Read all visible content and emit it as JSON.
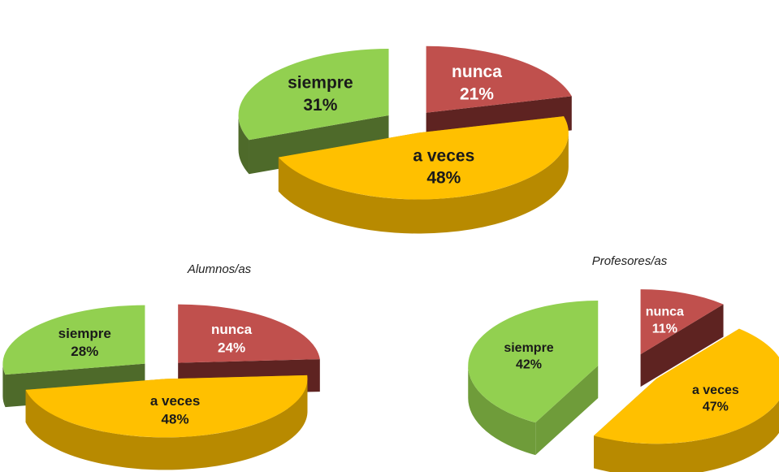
{
  "chart_data": [
    {
      "type": "pie3d",
      "categories": [
        "nunca",
        "a veces",
        "siempre"
      ],
      "values": [
        21,
        48,
        31
      ],
      "value_labels": [
        "21%",
        "48%",
        "31%"
      ],
      "colors": [
        "#c0504d",
        "#ffc000",
        "#92d050"
      ],
      "side_colors": [
        "#5e2321",
        "#b88a00",
        "#4e6a2a"
      ]
    },
    {
      "type": "pie3d",
      "title": "Alumnos/as",
      "categories": [
        "nunca",
        "a veces",
        "siempre"
      ],
      "values": [
        24,
        48,
        28
      ],
      "value_labels": [
        "24%",
        "48%",
        "28%"
      ],
      "colors": [
        "#c0504d",
        "#ffc000",
        "#92d050"
      ],
      "side_colors": [
        "#5e2321",
        "#b88a00",
        "#4e6a2a"
      ]
    },
    {
      "type": "pie3d",
      "title": "Profesores/as",
      "categories": [
        "nunca",
        "a veces",
        "siempre"
      ],
      "values": [
        11,
        47,
        42
      ],
      "value_labels": [
        "11%",
        "47%",
        "42%"
      ],
      "colors": [
        "#c0504d",
        "#ffc000",
        "#92d050"
      ],
      "side_colors": [
        "#5e2321",
        "#b88a00",
        "#6f9c3a"
      ]
    }
  ]
}
